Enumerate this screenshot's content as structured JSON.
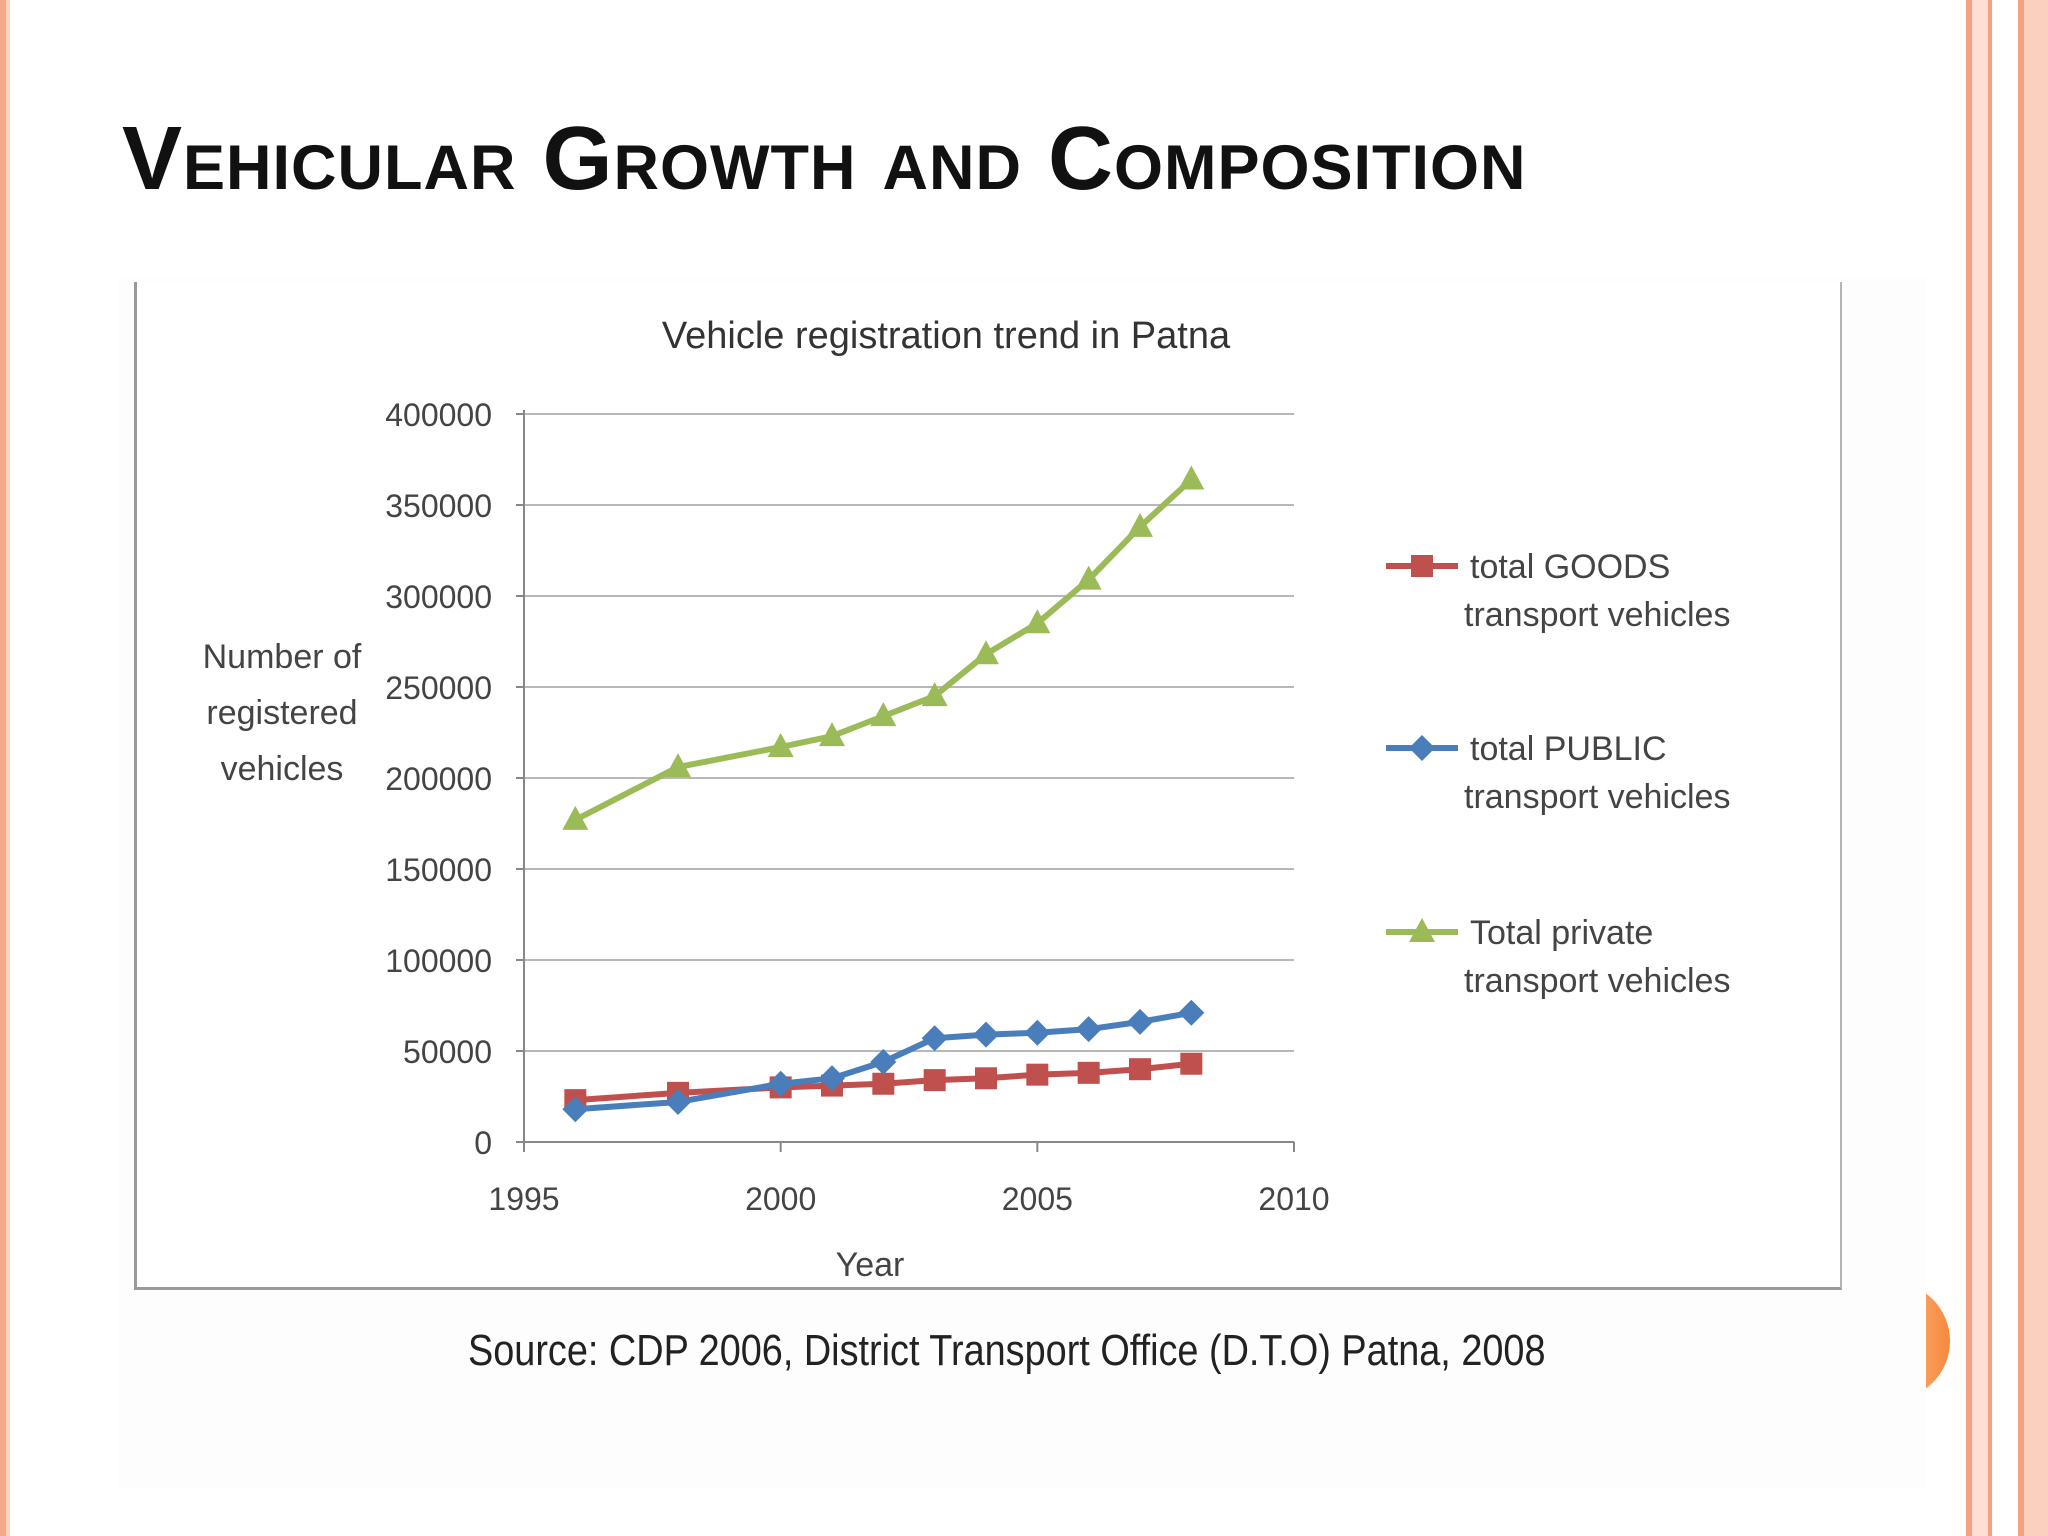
{
  "slide": {
    "title": "Vehicular Growth and Composition",
    "source": "Source: CDP 2006, District Transport Office (D.T.O) Patna, 2008"
  },
  "colors": {
    "goods": "#c0504d",
    "public": "#4a7ebb",
    "private": "#9bbb59",
    "accent": "#f6893d"
  },
  "chart_data": {
    "type": "line",
    "title": "Vehicle registration trend in Patna",
    "xlabel": "Year",
    "ylabel": "Number of registered vehicles",
    "ylabel_lines": [
      "Number of",
      "registered",
      "vehicles"
    ],
    "xlim": [
      1995,
      2010
    ],
    "ylim": [
      0,
      400000
    ],
    "xticks": [
      "1995",
      "2000",
      "2005",
      "2010"
    ],
    "yticks": [
      "0",
      "50000",
      "100000",
      "150000",
      "200000",
      "250000",
      "300000",
      "350000",
      "400000"
    ],
    "grid": true,
    "legend_position": "right",
    "series": [
      {
        "name": "total GOODS transport vehicles",
        "legend_lines": [
          "total GOODS",
          "transport vehicles"
        ],
        "marker": "square",
        "color": "#c0504d",
        "x": [
          1996,
          1998,
          2000,
          2001,
          2002,
          2003,
          2004,
          2005,
          2006,
          2007,
          2008
        ],
        "y": [
          23000,
          27000,
          30000,
          31000,
          32000,
          34000,
          35000,
          37000,
          38000,
          40000,
          43000
        ]
      },
      {
        "name": "total PUBLIC transport vehicles",
        "legend_lines": [
          "total PUBLIC",
          "transport vehicles"
        ],
        "marker": "diamond",
        "color": "#4a7ebb",
        "x": [
          1996,
          1998,
          2000,
          2001,
          2002,
          2003,
          2004,
          2005,
          2006,
          2007,
          2008
        ],
        "y": [
          18000,
          22000,
          32000,
          35000,
          44000,
          57000,
          59000,
          60000,
          62000,
          66000,
          71000
        ]
      },
      {
        "name": "Total private transport vehicles",
        "legend_lines": [
          "Total private",
          "transport vehicles"
        ],
        "marker": "triangle",
        "color": "#9bbb59",
        "x": [
          1996,
          1998,
          2000,
          2001,
          2002,
          2003,
          2004,
          2005,
          2006,
          2007,
          2008
        ],
        "y": [
          177000,
          206000,
          217000,
          223000,
          234000,
          245000,
          268000,
          285000,
          309000,
          338000,
          364000
        ]
      }
    ]
  }
}
